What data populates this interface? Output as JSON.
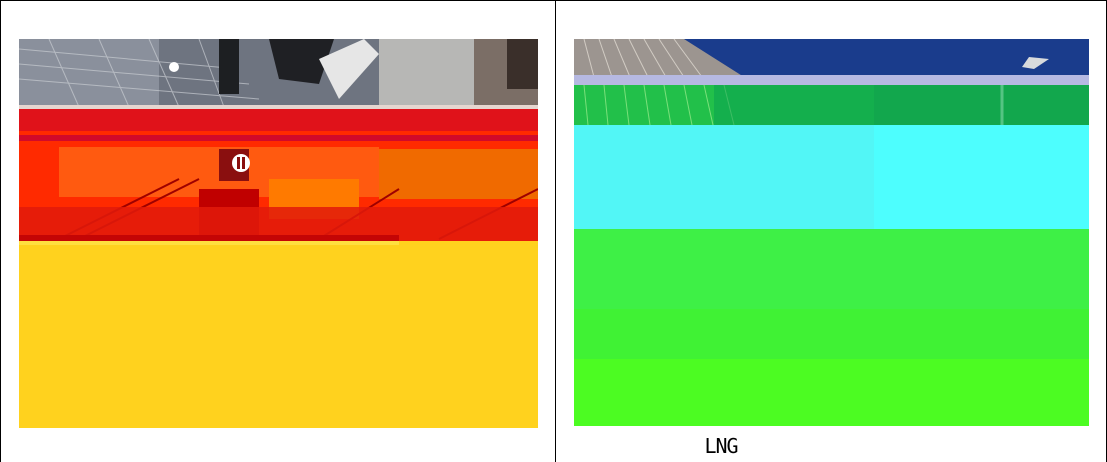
{
  "layout": {
    "left_cell": {
      "photo_label": ""
    },
    "right_cell": {
      "caption": "LNG"
    }
  },
  "colors": {
    "border": "#000000",
    "left_band_red": "#ff2a00",
    "left_band_yellow": "#ffd21e",
    "right_band_green": "#1db04a",
    "right_band_cyan": "#4dfefe",
    "right_band_lime": "#46fa2a",
    "sky": "#1a3c8c"
  }
}
